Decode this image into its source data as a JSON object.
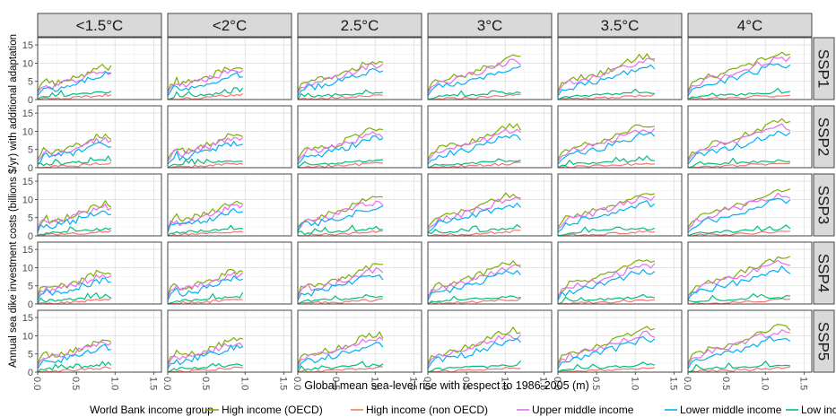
{
  "chart_data": {
    "type": "line",
    "xlabel": "Global mean sea-level rise with respect to 1986-2005 (m)",
    "ylabel": "Annual sea dike investment costs (billions $/yr) with additional adaptation",
    "xlim": [
      0,
      1.6
    ],
    "ylim": [
      0,
      17
    ],
    "x_ticks": [
      "0.0",
      "0.5",
      "1.0",
      "1.5"
    ],
    "y_ticks": [
      "0",
      "5",
      "10",
      "15"
    ],
    "x_tick_values": [
      0,
      0.5,
      1.0,
      1.5
    ],
    "y_tick_values": [
      0,
      5,
      10,
      15
    ],
    "grid": true,
    "legend_position": "bottom",
    "legend_title": "World Bank income group",
    "col_facets": [
      "<1.5°C",
      "<2°C",
      "2.5°C",
      "3°C",
      "3.5°C",
      "4°C"
    ],
    "row_facets": [
      "SSP1",
      "SSP2",
      "SSP3",
      "SSP4",
      "SSP5"
    ],
    "col_xmax": [
      0.95,
      0.97,
      1.1,
      1.2,
      1.25,
      1.32
    ],
    "series": [
      {
        "name": "High income (OECD)",
        "color": "#7CAE00"
      },
      {
        "name": "High income (non OECD)",
        "color": "#F8766D"
      },
      {
        "name": "Upper middle income",
        "color": "#E76BF3"
      },
      {
        "name": "Lower middle income",
        "color": "#00B0F6"
      },
      {
        "name": "Low income",
        "color": "#00BF7D"
      }
    ],
    "shape_profiles": {
      "x": [
        0,
        0.1,
        0.2,
        0.3,
        0.4,
        0.5,
        0.6,
        0.7,
        0.8,
        0.9,
        1.0
      ],
      "High income (OECD)": [
        3.2,
        5.2,
        6.3,
        6.8,
        7.4,
        8.3,
        9.4,
        10.6,
        12.0,
        12.8,
        12.3
      ],
      "High income (non OECD)": [
        0.1,
        0.2,
        0.3,
        0.35,
        0.45,
        0.55,
        0.7,
        0.85,
        1.0,
        1.15,
        1.3
      ],
      "Upper middle income": [
        2.6,
        4.4,
        5.4,
        6.1,
        6.9,
        7.7,
        8.6,
        9.6,
        10.7,
        11.4,
        10.9
      ],
      "Lower middle income": [
        1.9,
        3.4,
        4.1,
        4.7,
        5.3,
        6.1,
        7.0,
        8.0,
        9.0,
        9.7,
        9.2
      ],
      "Low income": [
        0.3,
        0.8,
        1.0,
        1.1,
        1.2,
        1.4,
        1.5,
        1.6,
        1.8,
        1.9,
        2.0
      ]
    }
  }
}
